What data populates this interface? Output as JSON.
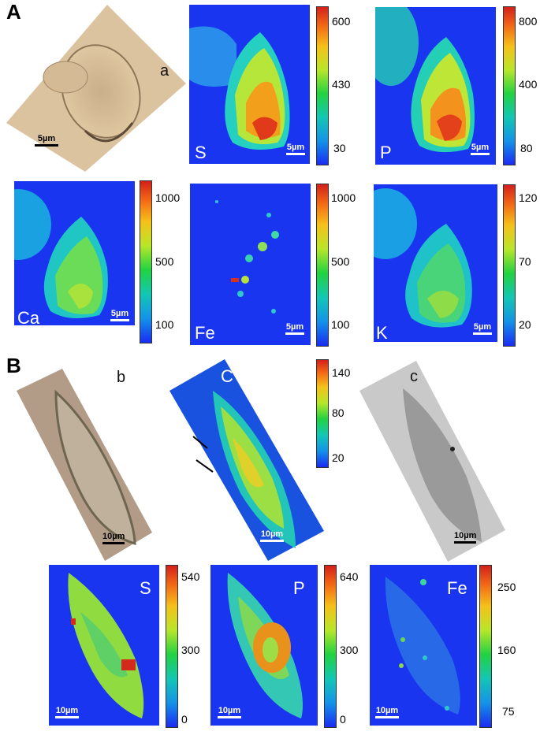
{
  "section_a": {
    "label": "A",
    "photo_label": "a",
    "photo_scale": "5µm",
    "maps": [
      {
        "element": "S",
        "scale": "5µm",
        "ticks": [
          "600",
          "430",
          "30"
        ]
      },
      {
        "element": "P",
        "scale": "5µm",
        "ticks": [
          "800",
          "400",
          "80"
        ]
      },
      {
        "element": "Ca",
        "scale": "5µm",
        "ticks": [
          "1000",
          "500",
          "100"
        ]
      },
      {
        "element": "Fe",
        "scale": "5µm",
        "ticks": [
          "1000",
          "500",
          "100"
        ]
      },
      {
        "element": "K",
        "scale": "5µm",
        "ticks": [
          "120",
          "70",
          "20"
        ]
      }
    ]
  },
  "section_b": {
    "label": "B",
    "photo_label": "b",
    "photo_scale": "10µm",
    "c_map": {
      "label": "C",
      "scale": "10µm",
      "ticks": [
        "140",
        "80",
        "20"
      ]
    },
    "gray": {
      "label": "c",
      "scale": "10µm"
    },
    "maps": [
      {
        "element": "S",
        "scale": "10µm",
        "ticks": [
          "540",
          "300",
          "0"
        ]
      },
      {
        "element": "P",
        "scale": "10µm",
        "ticks": [
          "640",
          "300",
          "0"
        ]
      },
      {
        "element": "Fe",
        "scale": "10µm",
        "ticks": [
          "250",
          "160",
          "75"
        ]
      }
    ]
  },
  "colors": {
    "map_background": "#1a35f0",
    "photo_background": "#d9bf9b",
    "colormap": [
      "#d3201b",
      "#f5c11a",
      "#22d241",
      "#13c7b4",
      "#1a2cf2"
    ]
  }
}
